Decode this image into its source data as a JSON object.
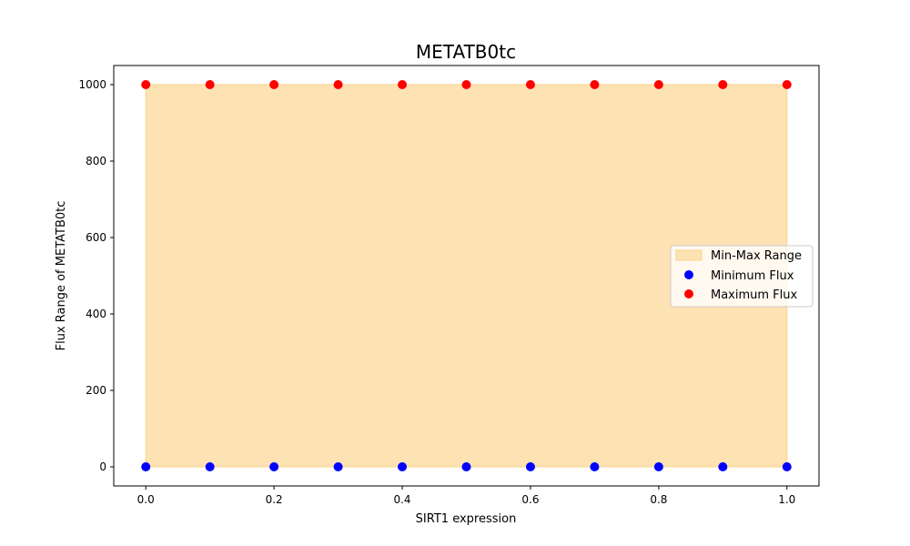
{
  "chart_data": {
    "type": "scatter",
    "title": "METATB0tc",
    "xlabel": "SIRT1 expression",
    "ylabel": "Flux Range of METATB0tc",
    "xlim": [
      -0.05,
      1.05
    ],
    "ylim": [
      -50,
      1050
    ],
    "x_ticks": [
      0.0,
      0.2,
      0.4,
      0.6,
      0.8,
      1.0
    ],
    "x_tick_labels": [
      "0.0",
      "0.2",
      "0.4",
      "0.6",
      "0.8",
      "1.0"
    ],
    "y_ticks": [
      0,
      200,
      400,
      600,
      800,
      1000
    ],
    "y_tick_labels": [
      "0",
      "200",
      "400",
      "600",
      "800",
      "1000"
    ],
    "grid": false,
    "legend_position": "center-right",
    "x": [
      0.0,
      0.1,
      0.2,
      0.3,
      0.4,
      0.5,
      0.6,
      0.7,
      0.8,
      0.9,
      1.0
    ],
    "series": [
      {
        "name": "Min-Max Range",
        "kind": "fill_between",
        "lower": [
          0,
          0,
          0,
          0,
          0,
          0,
          0,
          0,
          0,
          0,
          0
        ],
        "upper": [
          1000,
          1000,
          1000,
          1000,
          1000,
          1000,
          1000,
          1000,
          1000,
          1000,
          1000
        ],
        "color": "#fde2b3"
      },
      {
        "name": "Minimum Flux",
        "kind": "points",
        "values": [
          0,
          0,
          0,
          0,
          0,
          0,
          0,
          0,
          0,
          0,
          0
        ],
        "color": "#0000ff"
      },
      {
        "name": "Maximum Flux",
        "kind": "points",
        "values": [
          1000,
          1000,
          1000,
          1000,
          1000,
          1000,
          1000,
          1000,
          1000,
          1000,
          1000
        ],
        "color": "#ff0000"
      }
    ]
  }
}
